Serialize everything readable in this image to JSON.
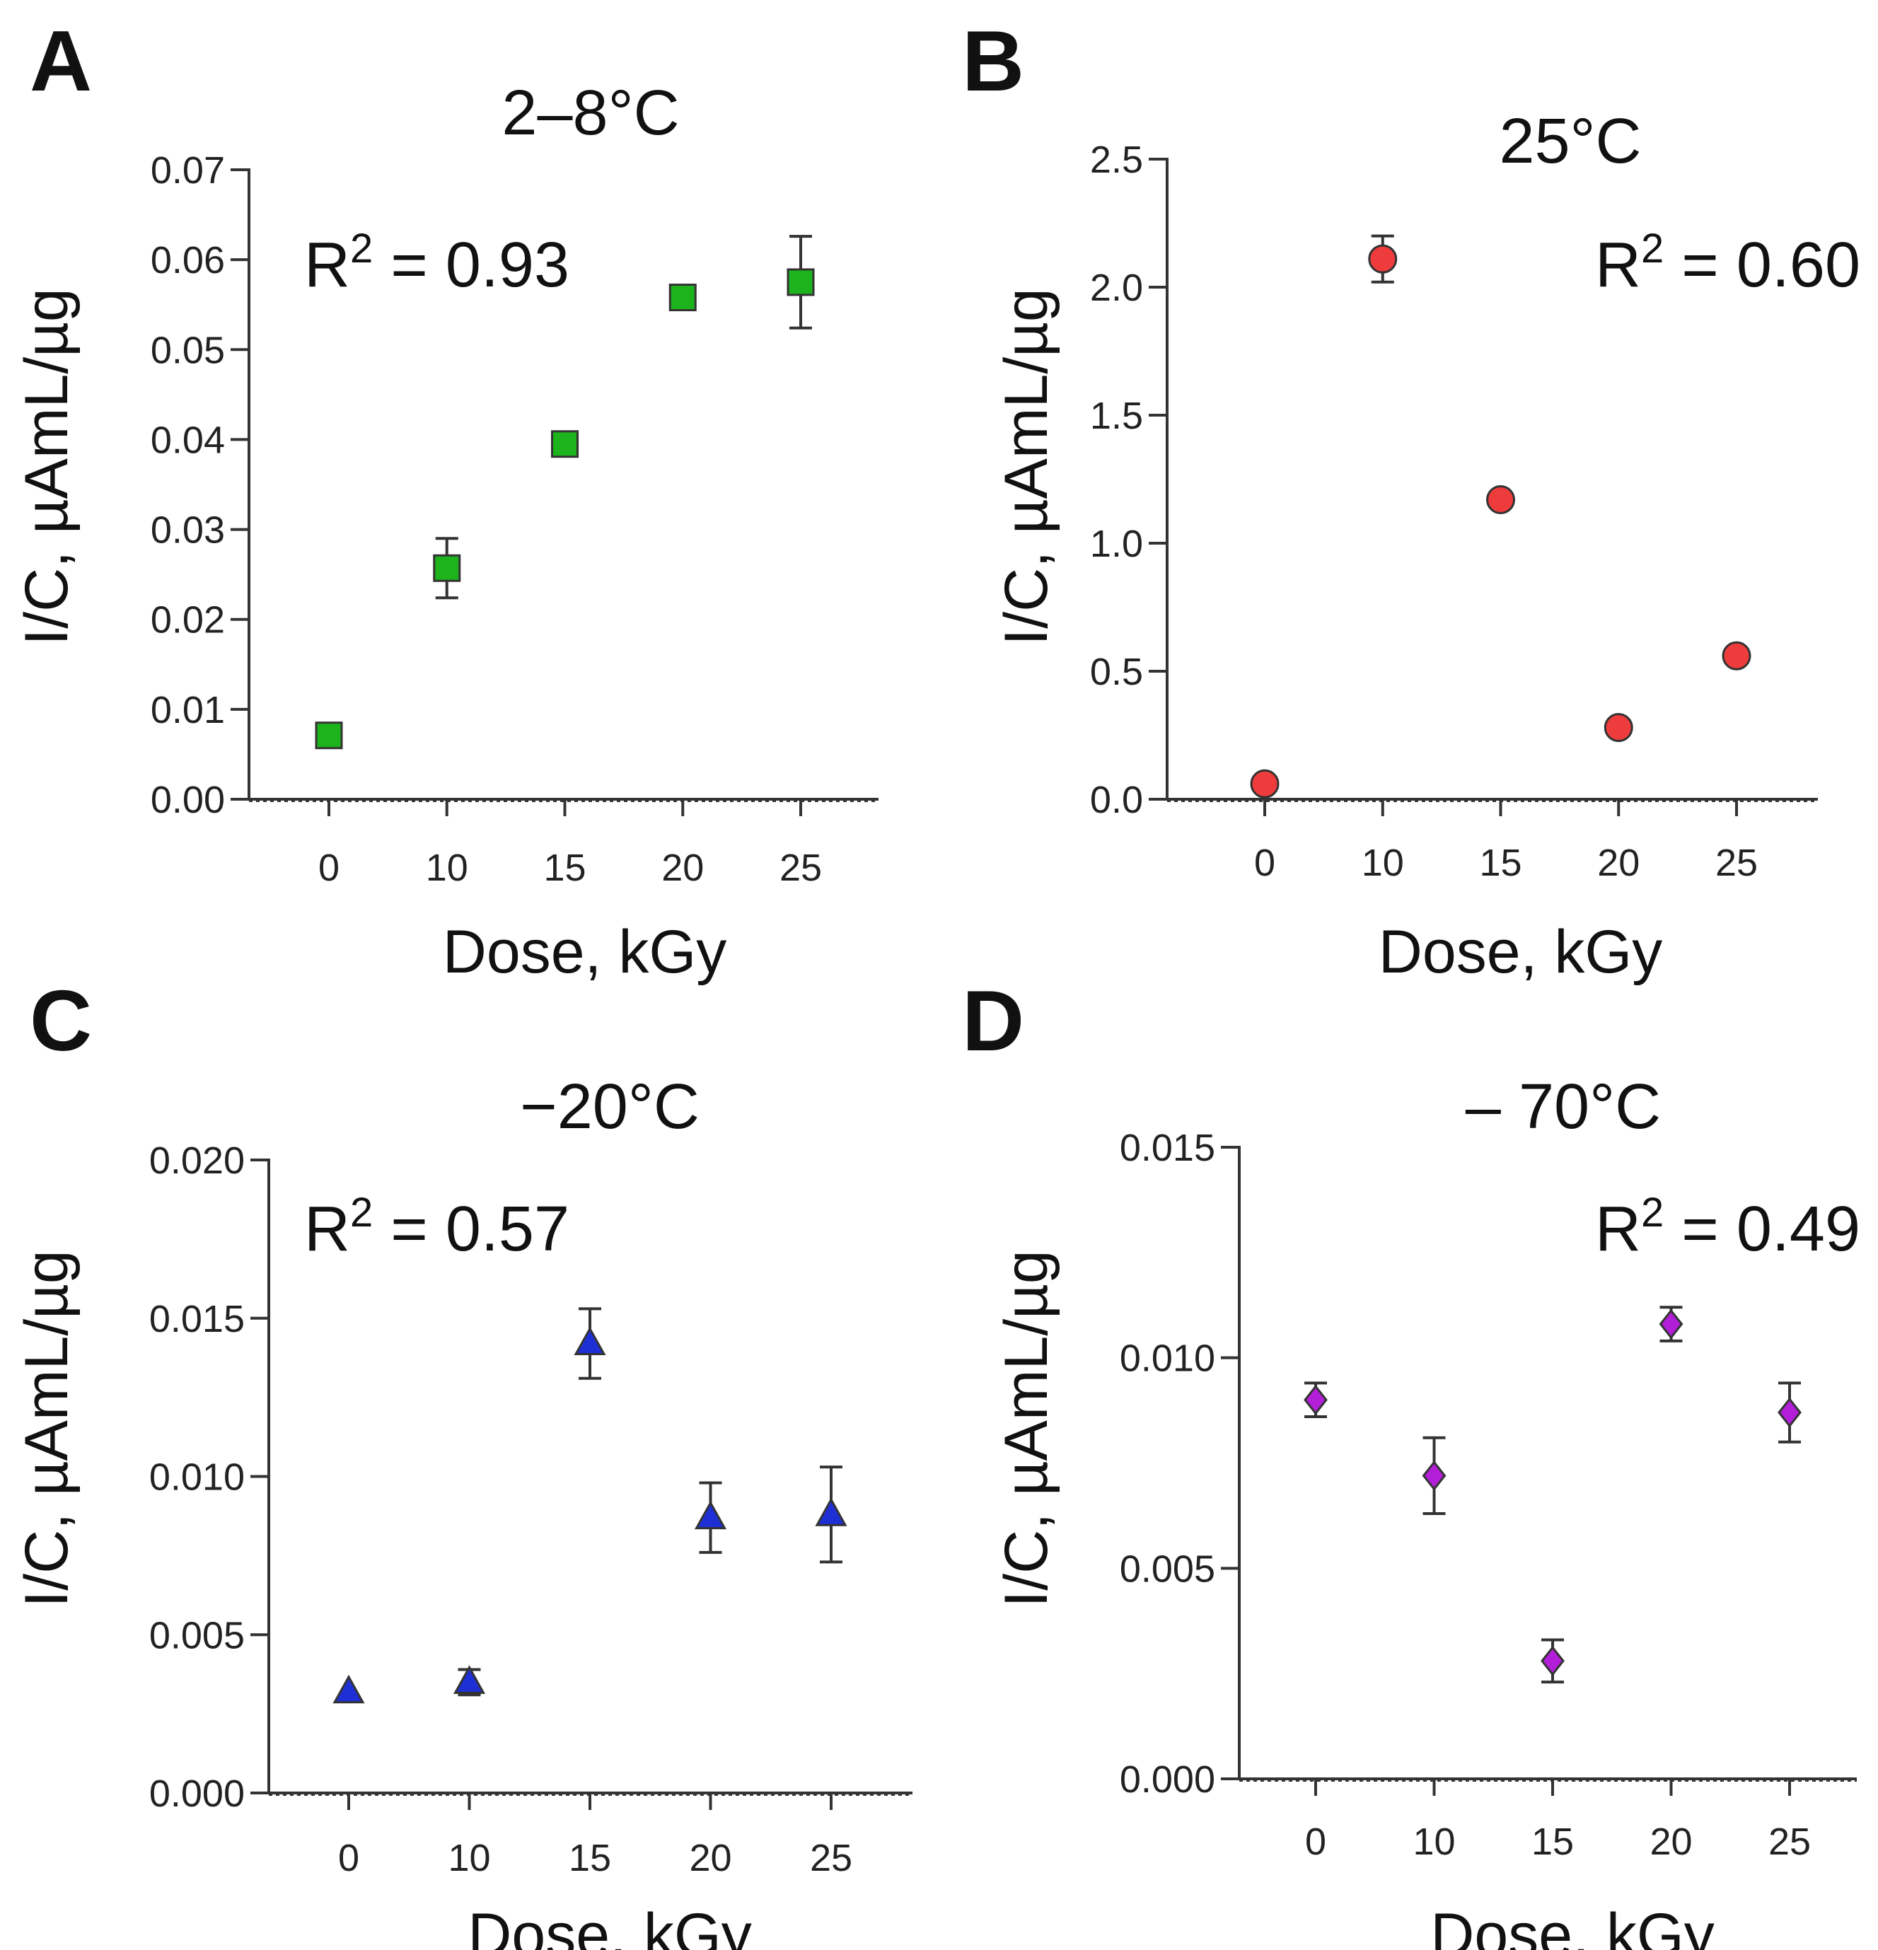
{
  "chart_data": [
    {
      "panel": "A",
      "type": "scatter",
      "title": "2–8°C",
      "xlabel": "Dose, kGy",
      "ylabel": "I/C, µAmL/µg",
      "annotation": {
        "prefix": "R",
        "sup": "2",
        "suffix": " = 0.93",
        "position": "top-left"
      },
      "marker": "square",
      "color": "#1db31d",
      "x_ticks": [
        "0",
        "10",
        "15",
        "20",
        "25"
      ],
      "y_ticks": [
        "0.00",
        "0.01",
        "0.02",
        "0.03",
        "0.04",
        "0.05",
        "0.06",
        "0.07"
      ],
      "ylim": [
        0,
        0.07
      ],
      "points": [
        {
          "x": 0,
          "y": 0.0071,
          "err": 0.0005
        },
        {
          "x": 10,
          "y": 0.0257,
          "err": 0.0033
        },
        {
          "x": 15,
          "y": 0.0395,
          "err": 0.0008
        },
        {
          "x": 20,
          "y": 0.0558,
          "err": 0.0008
        },
        {
          "x": 25,
          "y": 0.0575,
          "err": 0.0051
        }
      ]
    },
    {
      "panel": "B",
      "type": "scatter",
      "title": "25°C",
      "xlabel": "Dose, kGy",
      "ylabel": "I/C, µAmL/µg",
      "annotation": {
        "prefix": "R",
        "sup": "2",
        "suffix": " = 0.60",
        "position": "top-right"
      },
      "marker": "circle",
      "color": "#ee3b3b",
      "x_ticks": [
        "0",
        "10",
        "15",
        "20",
        "25"
      ],
      "y_ticks": [
        "0.0",
        "0.5",
        "1.0",
        "1.5",
        "2.0",
        "2.5"
      ],
      "ylim": [
        0,
        2.5
      ],
      "points": [
        {
          "x": 0,
          "y": 0.06,
          "err": 0
        },
        {
          "x": 10,
          "y": 2.11,
          "err": 0.09
        },
        {
          "x": 15,
          "y": 1.17,
          "err": 0
        },
        {
          "x": 20,
          "y": 0.28,
          "err": 0
        },
        {
          "x": 25,
          "y": 0.56,
          "err": 0
        }
      ]
    },
    {
      "panel": "C",
      "type": "scatter",
      "title": "−20°C",
      "xlabel": "Dose, kGy",
      "ylabel": "I/C, µAmL/µg",
      "annotation": {
        "prefix": "R",
        "sup": "2",
        "suffix": " = 0.57",
        "position": "top-left"
      },
      "marker": "triangle",
      "color": "#1f2fd6",
      "x_ticks": [
        "0",
        "10",
        "15",
        "20",
        "25"
      ],
      "y_ticks": [
        "0.000",
        "0.005",
        "0.010",
        "0.015",
        "0.020"
      ],
      "ylim": [
        0,
        0.02
      ],
      "points": [
        {
          "x": 0,
          "y": 0.0032,
          "err": 0
        },
        {
          "x": 10,
          "y": 0.0035,
          "err": 0.0004
        },
        {
          "x": 15,
          "y": 0.0142,
          "err": 0.0011
        },
        {
          "x": 20,
          "y": 0.0087,
          "err": 0.0011
        },
        {
          "x": 25,
          "y": 0.0088,
          "err": 0.0015
        }
      ]
    },
    {
      "panel": "D",
      "type": "scatter",
      "title": "– 70°C",
      "xlabel": "Dose, kGy",
      "ylabel": "I/C, µAmL/µg",
      "annotation": {
        "prefix": "R",
        "sup": "2",
        "suffix": " = 0.49",
        "position": "top-right"
      },
      "marker": "diamond",
      "color": "#b31fd9",
      "x_ticks": [
        "0",
        "10",
        "15",
        "20",
        "25"
      ],
      "y_ticks": [
        "0.000",
        "0.005",
        "0.010",
        "0.015"
      ],
      "ylim": [
        0,
        0.015
      ],
      "points": [
        {
          "x": 0,
          "y": 0.009,
          "err": 0.0004
        },
        {
          "x": 10,
          "y": 0.0072,
          "err": 0.0009
        },
        {
          "x": 15,
          "y": 0.0028,
          "err": 0.0005
        },
        {
          "x": 20,
          "y": 0.0108,
          "err": 0.0004
        },
        {
          "x": 25,
          "y": 0.0087,
          "err": 0.0007
        }
      ]
    }
  ]
}
